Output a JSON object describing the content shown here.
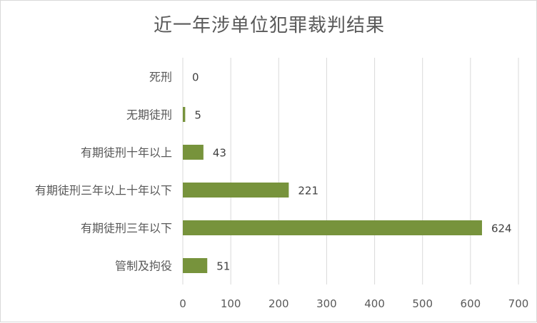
{
  "chart_data": {
    "type": "bar",
    "orientation": "horizontal",
    "title": "近一年涉单位犯罪裁判结果",
    "categories": [
      "死刑",
      "无期徒刑",
      "有期徒刑十年以上",
      "有期徒刑三年以上十年以下",
      "有期徒刑三年以下",
      "管制及拘役"
    ],
    "values": [
      0,
      5,
      43,
      221,
      624,
      51
    ],
    "xlim": [
      0,
      700
    ],
    "xticks": [
      "0",
      "100",
      "200",
      "300",
      "400",
      "500",
      "600",
      "700"
    ],
    "grid": true,
    "legend": "none",
    "bar_color": "#77933c",
    "xlabel": "",
    "ylabel": ""
  }
}
